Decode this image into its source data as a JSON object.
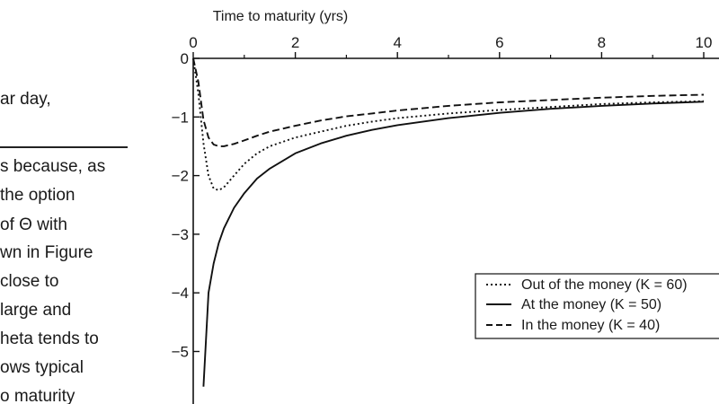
{
  "page_text": {
    "lines": [
      "ar day,",
      "s because, as",
      "the option",
      "of Θ with",
      "wn in Figure",
      "close to",
      "large and",
      "heta tends to",
      "ows typical",
      "o maturity"
    ]
  },
  "chart_data": {
    "type": "line",
    "title": "",
    "xlabel": "Time to maturity (yrs)",
    "ylabel": "",
    "x_axis_position": "top",
    "xlim": [
      0,
      10
    ],
    "ylim": [
      -6,
      0
    ],
    "x_ticks": [
      0,
      2,
      4,
      6,
      8,
      10
    ],
    "x_tick_labels": [
      "0",
      "2",
      "4",
      "6",
      "8",
      "10"
    ],
    "y_ticks": [
      0,
      -1,
      -2,
      -3,
      -4,
      -5,
      -6
    ],
    "y_tick_labels": [
      "0",
      "−1",
      "−2",
      "−3",
      "−4",
      "−5",
      ""
    ],
    "grid": false,
    "legend_position": "right",
    "x": [
      0.0,
      0.1,
      0.2,
      0.3,
      0.4,
      0.5,
      0.6,
      0.8,
      1,
      1.25,
      1.5,
      2,
      2.5,
      3,
      3.5,
      4,
      5,
      6,
      7,
      8,
      9,
      10
    ],
    "series": [
      {
        "name": "Out of the money (K = 60)",
        "style": "dotted",
        "values": [
          0.0,
          -0.6,
          -1.45,
          -2.0,
          -2.22,
          -2.25,
          -2.2,
          -2.0,
          -1.8,
          -1.62,
          -1.5,
          -1.35,
          -1.25,
          -1.15,
          -1.08,
          -1.02,
          -0.94,
          -0.88,
          -0.83,
          -0.78,
          -0.75,
          -0.73
        ]
      },
      {
        "name": "At the money (K = 50)",
        "style": "solid",
        "values": [
          null,
          null,
          -5.6,
          -4.0,
          -3.5,
          -3.15,
          -2.9,
          -2.55,
          -2.3,
          -2.05,
          -1.88,
          -1.62,
          -1.45,
          -1.32,
          -1.22,
          -1.14,
          -1.02,
          -0.93,
          -0.86,
          -0.81,
          -0.77,
          -0.74
        ]
      },
      {
        "name": "In the money (K = 40)",
        "style": "dashed",
        "values": [
          0.0,
          -0.4,
          -1.05,
          -1.35,
          -1.47,
          -1.5,
          -1.5,
          -1.46,
          -1.4,
          -1.32,
          -1.25,
          -1.15,
          -1.06,
          -0.99,
          -0.94,
          -0.89,
          -0.81,
          -0.75,
          -0.71,
          -0.67,
          -0.64,
          -0.62
        ]
      }
    ],
    "legend": [
      "Out of the money (K = 60)",
      "At the money (K = 50)",
      "In the money (K = 40)"
    ]
  }
}
